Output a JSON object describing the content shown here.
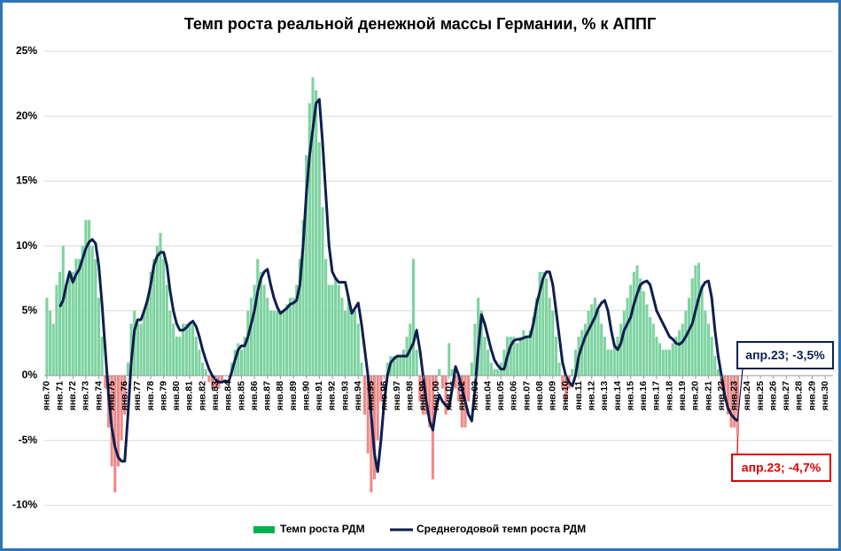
{
  "chart_data": {
    "type": "combo",
    "title": "Темп роста реальной денежной массы Германии, % к АППГ",
    "x": [
      1970,
      1970.25,
      1970.5,
      1970.75,
      1971,
      1971.25,
      1971.5,
      1971.75,
      1972,
      1972.25,
      1972.5,
      1972.75,
      1973,
      1973.25,
      1973.5,
      1973.75,
      1974,
      1974.25,
      1974.5,
      1974.75,
      1975,
      1975.25,
      1975.5,
      1975.75,
      1976,
      1976.25,
      1976.5,
      1976.75,
      1977,
      1977.25,
      1977.5,
      1977.75,
      1978,
      1978.25,
      1978.5,
      1978.75,
      1979,
      1979.25,
      1979.5,
      1979.75,
      1980,
      1980.25,
      1980.5,
      1980.75,
      1981,
      1981.25,
      1981.5,
      1981.75,
      1982,
      1982.25,
      1982.5,
      1982.75,
      1983,
      1983.25,
      1983.5,
      1983.75,
      1984,
      1984.25,
      1984.5,
      1984.75,
      1985,
      1985.25,
      1985.5,
      1985.75,
      1986,
      1986.25,
      1986.5,
      1986.75,
      1987,
      1987.25,
      1987.5,
      1987.75,
      1988,
      1988.25,
      1988.5,
      1988.75,
      1989,
      1989.25,
      1989.5,
      1989.75,
      1990,
      1990.25,
      1990.5,
      1990.75,
      1991,
      1991.25,
      1991.5,
      1991.75,
      1992,
      1992.25,
      1992.5,
      1992.75,
      1993,
      1993.25,
      1993.5,
      1993.75,
      1994,
      1994.25,
      1994.5,
      1994.75,
      1995,
      1995.25,
      1995.5,
      1995.75,
      1996,
      1996.25,
      1996.5,
      1996.75,
      1997,
      1997.25,
      1997.5,
      1997.75,
      1998,
      1998.25,
      1998.5,
      1998.75,
      1999,
      1999.25,
      1999.5,
      1999.75,
      2000,
      2000.25,
      2000.5,
      2000.75,
      2001,
      2001.25,
      2001.5,
      2001.75,
      2002,
      2002.25,
      2002.5,
      2002.75,
      2003,
      2003.25,
      2003.5,
      2003.75,
      2004,
      2004.25,
      2004.5,
      2004.75,
      2005,
      2005.25,
      2005.5,
      2005.75,
      2006,
      2006.25,
      2006.5,
      2006.75,
      2007,
      2007.25,
      2007.5,
      2007.75,
      2008,
      2008.25,
      2008.5,
      2008.75,
      2009,
      2009.25,
      2009.5,
      2009.75,
      2010,
      2010.25,
      2010.5,
      2010.75,
      2011,
      2011.25,
      2011.5,
      2011.75,
      2012,
      2012.25,
      2012.5,
      2012.75,
      2013,
      2013.25,
      2013.5,
      2013.75,
      2014,
      2014.25,
      2014.5,
      2014.75,
      2015,
      2015.25,
      2015.5,
      2015.75,
      2016,
      2016.25,
      2016.5,
      2016.75,
      2017,
      2017.25,
      2017.5,
      2017.75,
      2018,
      2018.25,
      2018.5,
      2018.75,
      2019,
      2019.25,
      2019.5,
      2019.75,
      2020,
      2020.25,
      2020.5,
      2020.75,
      2021,
      2021.25,
      2021.5,
      2021.75,
      2022,
      2022.25,
      2022.5,
      2022.75,
      2023,
      2023.25
    ],
    "series": [
      {
        "name": "Темп роста РДМ",
        "type": "bar",
        "color": "#7dd3a0",
        "negative_color": "#f08a8a",
        "legend_color": "#00b050",
        "values": [
          6,
          5,
          4,
          7,
          8,
          10,
          7,
          8,
          8,
          9,
          9,
          10,
          12,
          12,
          10,
          9,
          6,
          3,
          -1,
          -4,
          -7,
          -9,
          -7,
          -5,
          -3,
          1,
          4,
          5,
          4,
          4,
          5,
          6,
          8,
          9,
          10,
          11,
          9,
          7,
          5,
          4,
          3,
          3,
          4,
          4,
          4,
          4,
          3,
          2,
          1,
          0.5,
          -0.5,
          -1,
          -1,
          -1,
          -0.5,
          0,
          0,
          1,
          2,
          2.5,
          2,
          3,
          5,
          6,
          7,
          9,
          8,
          7,
          6,
          5,
          5,
          5,
          5,
          5,
          5.5,
          6,
          6,
          7,
          9,
          12,
          17,
          21,
          23,
          22,
          18,
          13,
          9,
          7,
          7,
          7.5,
          7,
          6,
          5,
          6,
          5,
          5,
          4,
          1,
          -3,
          -6,
          -9,
          -8,
          -5,
          -2,
          0,
          1,
          1.5,
          1.5,
          1.5,
          1.5,
          2,
          3,
          4,
          9,
          2,
          -2,
          -3,
          -3,
          -4,
          -8,
          -1,
          0.5,
          -1,
          -3,
          2.5,
          0.5,
          -1,
          -2,
          -4,
          -4,
          -2,
          1,
          4,
          6,
          5,
          3,
          2,
          1,
          0.5,
          0.5,
          1,
          2,
          3,
          3,
          3,
          2.5,
          3,
          3.5,
          3,
          3.5,
          4.5,
          6,
          8,
          8,
          7.5,
          6,
          5,
          3,
          1,
          -1,
          -2,
          -1,
          0.5,
          2,
          3,
          3.5,
          4,
          5,
          5.5,
          6,
          5,
          4,
          3,
          2,
          2,
          2.5,
          3,
          4,
          5,
          6,
          7,
          8,
          8.5,
          7.5,
          6.5,
          5.5,
          4.5,
          4,
          3,
          2.5,
          2,
          2,
          2,
          2.5,
          3,
          3.5,
          4,
          5,
          6,
          7.5,
          8.5,
          8.7,
          7,
          5,
          4,
          3,
          1.5,
          0.5,
          -1,
          -2,
          -3,
          -4,
          -4,
          -4.7
        ]
      },
      {
        "name": "Среднегодовой темп роста РДМ",
        "type": "line",
        "color": "#0d1f4f",
        "values": [
          null,
          null,
          null,
          null,
          5.3,
          5.8,
          7,
          8,
          7.2,
          7.8,
          8.2,
          9,
          9.8,
          10.3,
          10.5,
          10.2,
          8.5,
          5.5,
          2,
          -1.5,
          -4,
          -5.5,
          -6.3,
          -6.6,
          -6.6,
          -3,
          1,
          3.5,
          4.3,
          4.3,
          5,
          5.8,
          7,
          8.5,
          9.2,
          9.5,
          9.5,
          8.5,
          6.5,
          5,
          4,
          3.5,
          3.5,
          3.7,
          4,
          4.2,
          3.8,
          3,
          2,
          1.2,
          0.5,
          0,
          -0.3,
          -0.5,
          -0.5,
          -0.4,
          -0.5,
          0.3,
          1.2,
          2,
          2.3,
          2.3,
          3,
          4,
          5,
          6.5,
          7.5,
          8,
          8.2,
          7,
          6,
          5.3,
          4.8,
          5,
          5.2,
          5.5,
          5.6,
          5.8,
          7,
          10,
          14,
          17,
          19,
          21,
          21.3,
          18,
          14,
          10,
          8,
          7.5,
          7.2,
          7.2,
          7.2,
          6,
          4.8,
          5.2,
          5.6,
          4,
          2,
          0,
          -3,
          -6,
          -7.4,
          -5,
          -2,
          0,
          1,
          1.3,
          1.5,
          1.5,
          1.5,
          1.5,
          2,
          2.5,
          3.5,
          2,
          0,
          -2,
          -3.5,
          -4.2,
          -2.5,
          -1.5,
          -2,
          -2.3,
          -2.5,
          -1,
          0.7,
          0,
          -1,
          -2,
          -3,
          -3.5,
          -1,
          2,
          4.7,
          4,
          3,
          2,
          1.2,
          0.8,
          0.5,
          0.5,
          1.5,
          2.3,
          2.7,
          2.8,
          2.8,
          2.9,
          3,
          3,
          4,
          5.5,
          6.5,
          7.5,
          8,
          8,
          7,
          5,
          3,
          1,
          0,
          -0.5,
          -0.8,
          0,
          1.5,
          2.3,
          3,
          3.5,
          4,
          4.5,
          5.2,
          5.6,
          5.8,
          5,
          3.5,
          2.3,
          2,
          2.5,
          3.5,
          4,
          4.5,
          5.5,
          6.3,
          7,
          7.2,
          7.3,
          7,
          6,
          5,
          4.5,
          4,
          3.5,
          3,
          2.8,
          2.5,
          2.4,
          2.6,
          3,
          3.5,
          4,
          5,
          6,
          6.8,
          7.2,
          7.3,
          6,
          3.5,
          1.5,
          0,
          -1.5,
          -2.5,
          -3,
          -3.3,
          -3.5
        ]
      }
    ],
    "xlim": [
      1969.8,
      2030.6
    ],
    "xticks": [
      {
        "value": 1970,
        "label": "янв.70"
      },
      {
        "value": 1971,
        "label": "янв.71"
      },
      {
        "value": 1972,
        "label": "янв.72"
      },
      {
        "value": 1973,
        "label": "янв.73"
      },
      {
        "value": 1974,
        "label": "янв.74"
      },
      {
        "value": 1975,
        "label": "янв.75"
      },
      {
        "value": 1976,
        "label": "янв.76"
      },
      {
        "value": 1977,
        "label": "янв.77"
      },
      {
        "value": 1978,
        "label": "янв.78"
      },
      {
        "value": 1979,
        "label": "янв.79"
      },
      {
        "value": 1980,
        "label": "янв.80"
      },
      {
        "value": 1981,
        "label": "янв.81"
      },
      {
        "value": 1982,
        "label": "янв.82"
      },
      {
        "value": 1983,
        "label": "янв.83"
      },
      {
        "value": 1984,
        "label": "янв.84"
      },
      {
        "value": 1985,
        "label": "янв.85"
      },
      {
        "value": 1986,
        "label": "янв.86"
      },
      {
        "value": 1987,
        "label": "янв.87"
      },
      {
        "value": 1988,
        "label": "янв.88"
      },
      {
        "value": 1989,
        "label": "янв.89"
      },
      {
        "value": 1990,
        "label": "янв.90"
      },
      {
        "value": 1991,
        "label": "янв.91"
      },
      {
        "value": 1992,
        "label": "янв.92"
      },
      {
        "value": 1993,
        "label": "янв.93"
      },
      {
        "value": 1994,
        "label": "янв.94"
      },
      {
        "value": 1995,
        "label": "янв.95"
      },
      {
        "value": 1996,
        "label": "янв.96"
      },
      {
        "value": 1997,
        "label": "янв.97"
      },
      {
        "value": 1998,
        "label": "янв.98"
      },
      {
        "value": 1999,
        "label": "янв.99"
      },
      {
        "value": 2000,
        "label": "янв.00"
      },
      {
        "value": 2001,
        "label": "янв.01"
      },
      {
        "value": 2002,
        "label": "янв.02"
      },
      {
        "value": 2003,
        "label": "янв.03"
      },
      {
        "value": 2004,
        "label": "янв.04"
      },
      {
        "value": 2005,
        "label": "янв.05"
      },
      {
        "value": 2006,
        "label": "янв.06"
      },
      {
        "value": 2007,
        "label": "янв.07"
      },
      {
        "value": 2008,
        "label": "янв.08"
      },
      {
        "value": 2009,
        "label": "янв.09"
      },
      {
        "value": 2010,
        "label": "янв.10"
      },
      {
        "value": 2011,
        "label": "янв.11"
      },
      {
        "value": 2012,
        "label": "янв.12"
      },
      {
        "value": 2013,
        "label": "янв.13"
      },
      {
        "value": 2014,
        "label": "янв.14"
      },
      {
        "value": 2015,
        "label": "янв.15"
      },
      {
        "value": 2016,
        "label": "янв.16"
      },
      {
        "value": 2017,
        "label": "янв.17"
      },
      {
        "value": 2018,
        "label": "янв.18"
      },
      {
        "value": 2019,
        "label": "янв.19"
      },
      {
        "value": 2020,
        "label": "янв.20"
      },
      {
        "value": 2021,
        "label": "янв.21"
      },
      {
        "value": 2022,
        "label": "янв.22"
      },
      {
        "value": 2023,
        "label": "янв.23"
      },
      {
        "value": 2024,
        "label": "янв.24"
      },
      {
        "value": 2025,
        "label": "янв.25"
      },
      {
        "value": 2026,
        "label": "янв.26"
      },
      {
        "value": 2027,
        "label": "янв.27"
      },
      {
        "value": 2028,
        "label": "янв.28"
      },
      {
        "value": 2029,
        "label": "янв.29"
      },
      {
        "value": 2030,
        "label": "янв.30"
      }
    ],
    "ylim": [
      -10,
      25
    ],
    "yticks": [
      {
        "value": -10,
        "label": "-10%"
      },
      {
        "value": -5,
        "label": "-5%"
      },
      {
        "value": 0,
        "label": "0%"
      },
      {
        "value": 5,
        "label": "5%"
      },
      {
        "value": 10,
        "label": "10%"
      },
      {
        "value": 15,
        "label": "15%"
      },
      {
        "value": 20,
        "label": "20%"
      },
      {
        "value": 25,
        "label": "25%"
      }
    ],
    "grid": true,
    "legend": "bottom",
    "annotations": [
      {
        "text": "апр.23; -3,5%",
        "color": "#0d1f4f",
        "series": 1
      },
      {
        "text": "апр.23; -4,7%",
        "color": "#e00000",
        "series": 0
      }
    ]
  }
}
